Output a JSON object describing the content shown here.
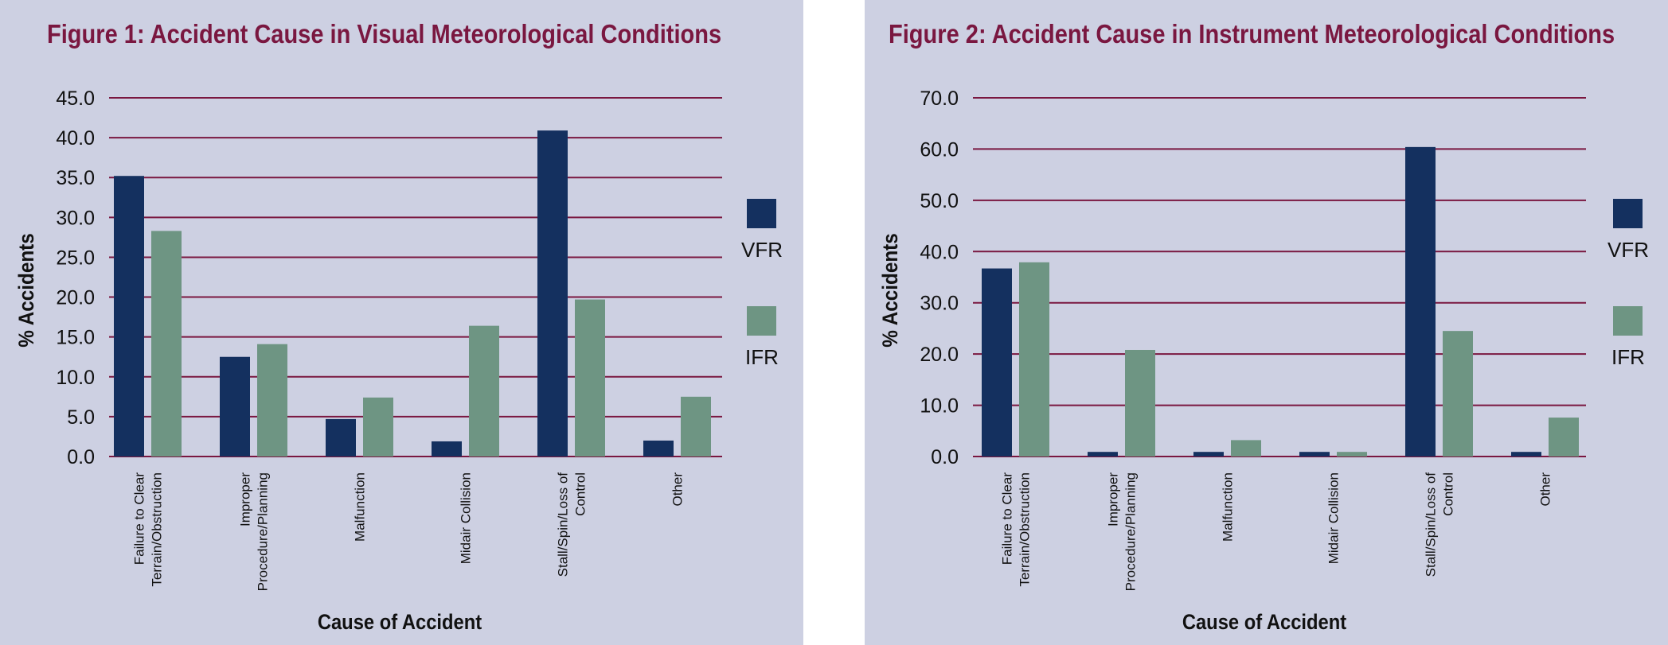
{
  "colors": {
    "panel_bg": "#cdd0e2",
    "title": "#7a1740",
    "grid": "#7a1740",
    "vfr": "#14305f",
    "ifr": "#6e9583"
  },
  "chart_data": [
    {
      "type": "bar",
      "title": "Figure 1: Accident Cause in Visual Meteorological Conditions",
      "xlabel": "Cause of Accident",
      "ylabel": "% Accidents",
      "ylim": [
        0,
        45
      ],
      "yticks": [
        "0.0",
        "5.0",
        "10.0",
        "15.0",
        "20.0",
        "25.0",
        "30.0",
        "35.0",
        "40.0",
        "45.0"
      ],
      "categories": [
        [
          "Failure to Clear",
          "Terrain/Obstruction"
        ],
        [
          "Improper",
          "Procedure/Planning"
        ],
        [
          "Malfunction"
        ],
        [
          "Midair Collision"
        ],
        [
          "Stall/Spin/Loss of",
          "Control"
        ],
        [
          "Other"
        ]
      ],
      "series": [
        {
          "name": "VFR",
          "values": [
            35.2,
            12.5,
            4.7,
            1.9,
            40.9,
            2.0
          ]
        },
        {
          "name": "IFR",
          "values": [
            28.3,
            14.1,
            7.4,
            16.4,
            19.7,
            7.5
          ]
        }
      ],
      "grid": true,
      "legend_position": "right"
    },
    {
      "type": "bar",
      "title": "Figure 2: Accident Cause in Instrument Meteorological Conditions",
      "xlabel": "Cause of Accident",
      "ylabel": "% Accidents",
      "ylim": [
        0,
        70
      ],
      "yticks": [
        "0.0",
        "10.0",
        "20.0",
        "30.0",
        "40.0",
        "50.0",
        "60.0",
        "70.0"
      ],
      "categories": [
        [
          "Failure to Clear",
          "Terrain/Obstruction"
        ],
        [
          "Improper",
          "Procedure/Planning"
        ],
        [
          "Malfunction"
        ],
        [
          "Midair Collision"
        ],
        [
          "Stall/Spin/Loss of",
          "Control"
        ],
        [
          "Other"
        ]
      ],
      "series": [
        {
          "name": "VFR",
          "values": [
            36.7,
            0.9,
            0.9,
            0.9,
            60.4,
            0.9
          ]
        },
        {
          "name": "IFR",
          "values": [
            37.9,
            20.8,
            3.2,
            0.9,
            24.5,
            7.6
          ]
        }
      ],
      "grid": true,
      "legend_position": "right"
    }
  ]
}
